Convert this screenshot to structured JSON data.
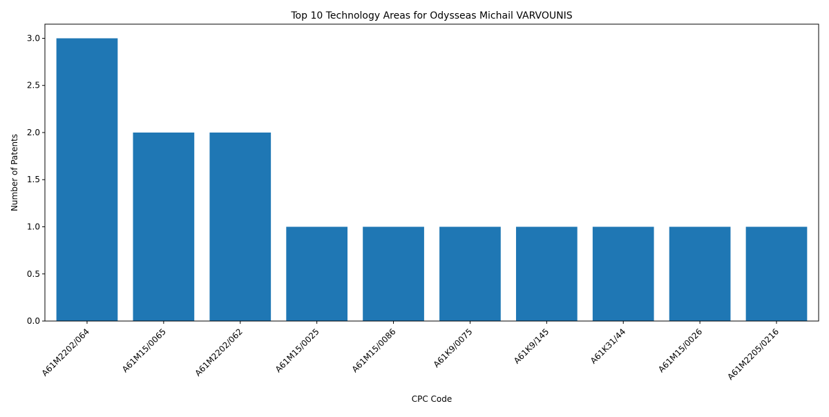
{
  "chart_data": {
    "type": "bar",
    "title": "Top 10 Technology Areas for Odysseas Michail VARVOUNIS",
    "xlabel": "CPC Code",
    "ylabel": "Number of Patents",
    "categories": [
      "A61M2202/064",
      "A61M15/0065",
      "A61M2202/062",
      "A61M15/0025",
      "A61M15/0086",
      "A61K9/0075",
      "A61K9/145",
      "A61K31/44",
      "A61M15/0026",
      "A61M2205/0216"
    ],
    "values": [
      3,
      2,
      2,
      1,
      1,
      1,
      1,
      1,
      1,
      1
    ],
    "ylim": [
      0,
      3.15
    ],
    "yticks": [
      0.0,
      0.5,
      1.0,
      1.5,
      2.0,
      2.5,
      3.0
    ],
    "ytick_labels": [
      "0.0",
      "0.5",
      "1.0",
      "1.5",
      "2.0",
      "2.5",
      "3.0"
    ],
    "bar_color": "#1f77b4",
    "grid": false,
    "legend": "none"
  }
}
